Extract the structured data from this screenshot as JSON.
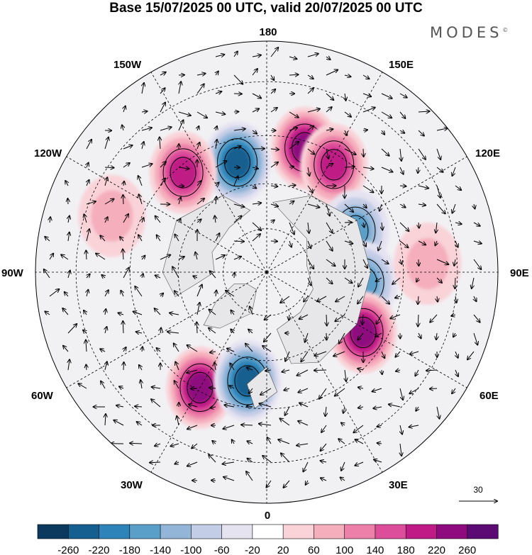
{
  "header": {
    "title": "Base 15/07/2025 00 UTC, valid 20/07/2025 00 UTC",
    "brand": "MODES",
    "brand_mark": "©"
  },
  "map": {
    "projection": "north-polar-stereographic",
    "longitude_labels": {
      "top": "180",
      "bottom": "0",
      "left": "90W",
      "right": "90E",
      "upper_left_1": "150W",
      "upper_left_2": "120W",
      "upper_right_1": "150E",
      "upper_right_2": "120E",
      "lower_left_1": "60W",
      "lower_left_2": "30W",
      "lower_right_1": "60E",
      "lower_right_2": "30E"
    },
    "reference_vector_label": "30",
    "anomaly_centers": [
      {
        "lon": -165,
        "lat": 52,
        "sign": "negative",
        "value": -240
      },
      {
        "lon": 163,
        "lat": 47,
        "sign": "positive",
        "value": 220
      },
      {
        "lon": 148,
        "lat": 48,
        "sign": "positive",
        "value": 200
      },
      {
        "lon": -140,
        "lat": 47,
        "sign": "positive",
        "value": 200
      },
      {
        "lon": 115,
        "lat": 57,
        "sign": "negative",
        "value": -160
      },
      {
        "lon": 84,
        "lat": 57,
        "sign": "negative",
        "value": -160
      },
      {
        "lon": 58,
        "lat": 52,
        "sign": "positive",
        "value": 220
      },
      {
        "lon": -30,
        "lat": 46,
        "sign": "positive",
        "value": 220
      },
      {
        "lon": -10,
        "lat": 53,
        "sign": "negative",
        "value": -220
      },
      {
        "lon": 93,
        "lat": 38,
        "sign": "positive",
        "value": 60
      },
      {
        "lon": -110,
        "lat": 37,
        "sign": "positive",
        "value": 60
      }
    ]
  },
  "colorbar": {
    "tick_labels": [
      "-260",
      "-220",
      "-180",
      "-140",
      "-100",
      "-60",
      "-20",
      "20",
      "60",
      "100",
      "140",
      "180",
      "220",
      "260"
    ],
    "colors": [
      "#0c3a5e",
      "#145f8f",
      "#2e84b8",
      "#5a9fca",
      "#93b6d8",
      "#c4cde6",
      "#e6e3f1",
      "#ffffff",
      "#f9d3d8",
      "#f5aebc",
      "#ec80a8",
      "#dc4e9a",
      "#bf1a86",
      "#8e0a7e",
      "#5c0a74"
    ]
  },
  "chart_data": {
    "type": "heatmap",
    "title": "Base 15/07/2025 00 UTC, valid 20/07/2025 00 UTC",
    "colorbar_levels": [
      -260,
      -220,
      -180,
      -140,
      -100,
      -60,
      -20,
      20,
      60,
      100,
      140,
      180,
      220,
      260
    ],
    "vector_reference": 30
  }
}
